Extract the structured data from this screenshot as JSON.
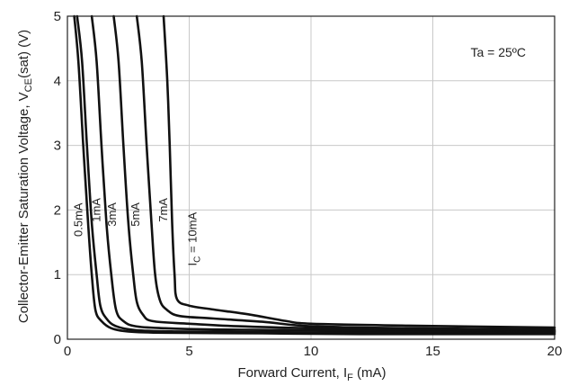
{
  "chart_data": {
    "type": "line",
    "xlabel": {
      "main": "Forward Current, I",
      "sub": "F",
      "tail": " (mA)"
    },
    "ylabel": {
      "main": "Collector-Emitter Saturation Voltage, V",
      "sub": "CE",
      "tail": "(sat) (V)"
    },
    "xlim": [
      0,
      20
    ],
    "ylim": [
      0,
      5
    ],
    "xticks": [
      0,
      5,
      10,
      15,
      20
    ],
    "yticks": [
      0,
      1,
      2,
      3,
      4,
      5
    ],
    "grid": true,
    "annotation": "Ta = 25ºC",
    "series": [
      {
        "name": "0.5mA",
        "label": {
          "main": "0.5mA",
          "lx": 0.6,
          "ly": 1.85
        },
        "x": [
          0.28,
          0.45,
          0.65,
          0.85,
          1.0,
          1.15,
          1.4,
          1.8,
          2.5,
          4,
          8,
          12,
          20
        ],
        "y": [
          5.0,
          4.3,
          3.0,
          1.8,
          1.0,
          0.45,
          0.28,
          0.17,
          0.12,
          0.1,
          0.09,
          0.08,
          0.08
        ]
      },
      {
        "name": "1mA",
        "label": {
          "main": "1mA",
          "lx": 1.35,
          "ly": 2.0
        },
        "x": [
          0.4,
          0.6,
          0.8,
          1.0,
          1.2,
          1.35,
          1.6,
          2.0,
          2.8,
          4.5,
          8,
          12,
          20
        ],
        "y": [
          5.0,
          4.3,
          3.0,
          1.8,
          1.0,
          0.52,
          0.32,
          0.2,
          0.14,
          0.12,
          0.11,
          0.1,
          0.1
        ]
      },
      {
        "name": "3mA",
        "label": {
          "main": "3mA",
          "lx": 2.0,
          "ly": 1.93
        },
        "x": [
          1.0,
          1.2,
          1.4,
          1.6,
          1.8,
          2.0,
          2.3,
          2.8,
          4,
          6,
          9,
          13,
          20
        ],
        "y": [
          5.0,
          4.3,
          3.0,
          1.8,
          1.0,
          0.45,
          0.28,
          0.2,
          0.17,
          0.15,
          0.14,
          0.13,
          0.12
        ]
      },
      {
        "name": "5mA",
        "label": {
          "main": "5mA",
          "lx": 2.95,
          "ly": 1.93
        },
        "x": [
          1.9,
          2.1,
          2.3,
          2.5,
          2.7,
          2.85,
          3.1,
          3.5,
          5,
          7,
          10,
          14,
          20
        ],
        "y": [
          5.0,
          4.3,
          3.0,
          1.8,
          1.0,
          0.58,
          0.38,
          0.28,
          0.24,
          0.2,
          0.17,
          0.15,
          0.13
        ]
      },
      {
        "name": "7mA",
        "label": {
          "main": "7mA",
          "lx": 4.1,
          "ly": 2.0
        },
        "x": [
          2.85,
          3.05,
          3.25,
          3.45,
          3.6,
          3.8,
          4.1,
          4.6,
          6,
          8,
          10,
          14,
          20
        ],
        "y": [
          5.0,
          4.3,
          3.0,
          1.8,
          1.0,
          0.6,
          0.45,
          0.36,
          0.32,
          0.27,
          0.2,
          0.17,
          0.15
        ]
      },
      {
        "name": "IC = 10mA",
        "label": {
          "main": "I",
          "sub": "C",
          "tail": " = 10mA",
          "lx": 5.3,
          "ly": 1.55
        },
        "x": [
          3.95,
          4.1,
          4.2,
          4.3,
          4.4,
          4.5,
          5.0,
          6,
          7.5,
          9,
          10,
          14,
          20
        ],
        "y": [
          5.0,
          4.0,
          3.0,
          1.8,
          1.0,
          0.62,
          0.52,
          0.46,
          0.38,
          0.28,
          0.24,
          0.21,
          0.18
        ]
      }
    ]
  }
}
